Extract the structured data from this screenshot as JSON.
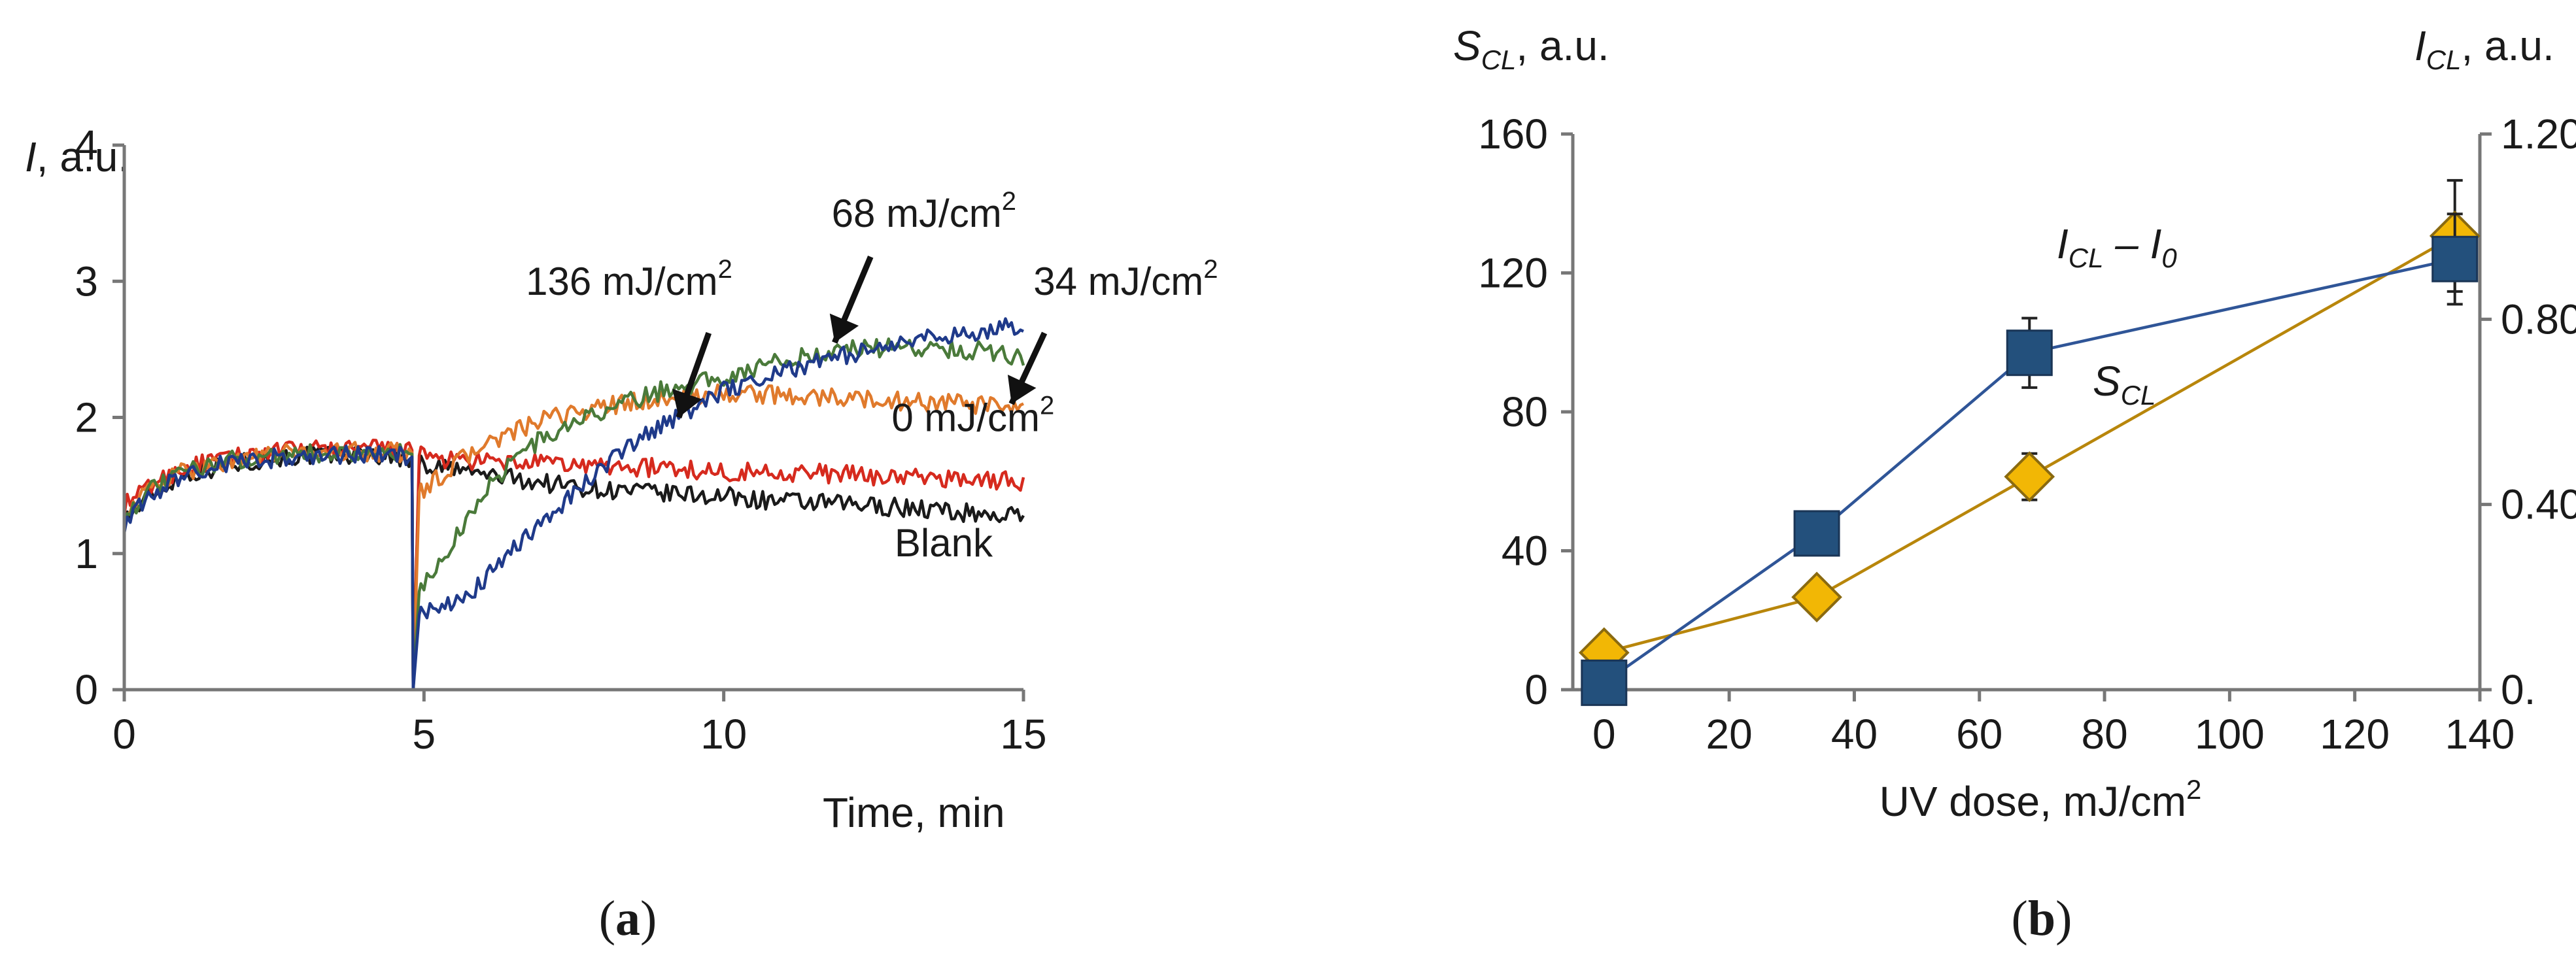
{
  "chart_data": [
    {
      "id": "a",
      "type": "line",
      "panel_label": "(a)",
      "panel_letter": "a",
      "ylabel_italic": "I",
      "ylabel_rest": ", a.u.",
      "xlabel": "Time, min",
      "xlim": [
        0,
        15
      ],
      "ylim": [
        0,
        4
      ],
      "xticks": [
        0,
        5,
        10,
        15
      ],
      "yticks": [
        0,
        1,
        2,
        3,
        4
      ],
      "grid": false,
      "injection_time": 4.8,
      "series": [
        {
          "name": "Blank",
          "color": "#1a1a1a",
          "points": [
            [
              0,
              1.25
            ],
            [
              0.5,
              1.45
            ],
            [
              1,
              1.58
            ],
            [
              1.5,
              1.63
            ],
            [
              2,
              1.67
            ],
            [
              2.5,
              1.7
            ],
            [
              3,
              1.72
            ],
            [
              3.5,
              1.72
            ],
            [
              4,
              1.73
            ],
            [
              4.75,
              1.7
            ],
            [
              4.85,
              0.05
            ],
            [
              4.95,
              1.65
            ],
            [
              5.5,
              1.62
            ],
            [
              6,
              1.58
            ],
            [
              7,
              1.52
            ],
            [
              8,
              1.47
            ],
            [
              9,
              1.44
            ],
            [
              10,
              1.42
            ],
            [
              11,
              1.38
            ],
            [
              12,
              1.36
            ],
            [
              13,
              1.34
            ],
            [
              14,
              1.3
            ],
            [
              15,
              1.27
            ]
          ]
        },
        {
          "name": "0 mJ/cm²",
          "color": "#d62a1e",
          "points": [
            [
              0,
              1.35
            ],
            [
              0.5,
              1.52
            ],
            [
              1,
              1.63
            ],
            [
              1.5,
              1.68
            ],
            [
              2,
              1.72
            ],
            [
              2.5,
              1.75
            ],
            [
              3,
              1.76
            ],
            [
              3.5,
              1.77
            ],
            [
              4,
              1.77
            ],
            [
              4.75,
              1.76
            ],
            [
              4.85,
              0.05
            ],
            [
              4.95,
              1.72
            ],
            [
              5.5,
              1.68
            ],
            [
              6,
              1.67
            ],
            [
              7,
              1.66
            ],
            [
              8,
              1.64
            ],
            [
              9,
              1.63
            ],
            [
              10,
              1.6
            ],
            [
              11,
              1.6
            ],
            [
              12,
              1.58
            ],
            [
              13,
              1.56
            ],
            [
              14,
              1.55
            ],
            [
              15,
              1.53
            ]
          ]
        },
        {
          "name": "34 mJ/cm²",
          "color": "#e07a2c",
          "points": [
            [
              0,
              1.3
            ],
            [
              0.5,
              1.5
            ],
            [
              1,
              1.6
            ],
            [
              1.5,
              1.66
            ],
            [
              2,
              1.7
            ],
            [
              2.5,
              1.73
            ],
            [
              3,
              1.74
            ],
            [
              3.5,
              1.75
            ],
            [
              4,
              1.75
            ],
            [
              4.75,
              1.74
            ],
            [
              4.85,
              0.05
            ],
            [
              4.95,
              1.45
            ],
            [
              5.5,
              1.65
            ],
            [
              6,
              1.8
            ],
            [
              7,
              1.98
            ],
            [
              8,
              2.08
            ],
            [
              9,
              2.14
            ],
            [
              10,
              2.18
            ],
            [
              11,
              2.16
            ],
            [
              12,
              2.14
            ],
            [
              13,
              2.12
            ],
            [
              14,
              2.1
            ],
            [
              15,
              2.05
            ]
          ]
        },
        {
          "name": "68 mJ/cm²",
          "color": "#4a7a3a",
          "points": [
            [
              0,
              1.28
            ],
            [
              0.5,
              1.48
            ],
            [
              1,
              1.6
            ],
            [
              1.5,
              1.66
            ],
            [
              2,
              1.7
            ],
            [
              2.5,
              1.72
            ],
            [
              3,
              1.73
            ],
            [
              3.5,
              1.74
            ],
            [
              4,
              1.74
            ],
            [
              4.75,
              1.73
            ],
            [
              4.85,
              0.05
            ],
            [
              4.95,
              0.72
            ],
            [
              5.5,
              1.1
            ],
            [
              6,
              1.45
            ],
            [
              6.5,
              1.7
            ],
            [
              7,
              1.85
            ],
            [
              8,
              2.05
            ],
            [
              9,
              2.2
            ],
            [
              10,
              2.3
            ],
            [
              11,
              2.42
            ],
            [
              12,
              2.5
            ],
            [
              13,
              2.52
            ],
            [
              14,
              2.5
            ],
            [
              15,
              2.45
            ]
          ]
        },
        {
          "name": "136 mJ/cm²",
          "color": "#1f3a8a",
          "points": [
            [
              0,
              1.22
            ],
            [
              0.5,
              1.45
            ],
            [
              1,
              1.58
            ],
            [
              1.5,
              1.64
            ],
            [
              2,
              1.68
            ],
            [
              2.5,
              1.7
            ],
            [
              3,
              1.71
            ],
            [
              3.5,
              1.72
            ],
            [
              4,
              1.73
            ],
            [
              4.75,
              1.71
            ],
            [
              4.85,
              0.05
            ],
            [
              4.95,
              0.55
            ],
            [
              5.5,
              0.62
            ],
            [
              6,
              0.8
            ],
            [
              7,
              1.25
            ],
            [
              8,
              1.65
            ],
            [
              9,
              1.95
            ],
            [
              10,
              2.2
            ],
            [
              11,
              2.35
            ],
            [
              12,
              2.45
            ],
            [
              13,
              2.55
            ],
            [
              14,
              2.62
            ],
            [
              15,
              2.68
            ]
          ]
        }
      ],
      "annotations": [
        {
          "text": "136 mJ/cm",
          "sup": "2",
          "label_at": [
            6.7,
            2.9
          ],
          "arrow_to": [
            9.25,
            2.0
          ]
        },
        {
          "text": "68 mJ/cm",
          "sup": "2",
          "label_at": [
            11.8,
            3.4
          ],
          "arrow_to": [
            11.85,
            2.55
          ]
        },
        {
          "text": "34 mJ/cm",
          "sup": "2",
          "label_at": [
            15.2,
            2.9
          ],
          "arrow_to": [
            14.8,
            2.1
          ]
        },
        {
          "text": "0 mJ/cm",
          "sup": "2",
          "label_at": [
            12.8,
            1.9
          ],
          "arrow_to": null
        },
        {
          "text": "Blank",
          "sup": "",
          "label_at": [
            12.85,
            0.98
          ],
          "arrow_to": null
        }
      ]
    },
    {
      "id": "b",
      "type": "line",
      "panel_label": "(b)",
      "panel_letter": "b",
      "xlabel": "UV dose, mJ/cm",
      "xlabel_sup": "2",
      "ylabel_left_main": "S",
      "ylabel_left_sub": "CL",
      "ylabel_left_rest": ", a.u.",
      "ylabel_right_main": "I",
      "ylabel_right_sub": "CL",
      "ylabel_right_rest": ", a.u.",
      "xlim": [
        -5,
        140
      ],
      "ylim_left": [
        0,
        160
      ],
      "ylim_right": [
        0,
        1.2
      ],
      "xticks": [
        0,
        20,
        40,
        60,
        80,
        100,
        120,
        140
      ],
      "yticks_left": [
        0,
        40,
        80,
        120,
        160
      ],
      "yticks_right": [
        "0.",
        "0.40",
        "0.80",
        "1.20"
      ],
      "yticks_right_values": [
        0,
        0.4,
        0.8,
        1.2
      ],
      "grid": false,
      "series": [
        {
          "name": "S",
          "name_sub": "CL",
          "axis": "left",
          "marker": "square",
          "marker_color": "#23507c",
          "line_color": "#2f5597",
          "x": [
            0,
            34,
            68,
            136
          ],
          "y": [
            2,
            45,
            97,
            124
          ],
          "err": [
            0,
            0,
            10,
            13
          ]
        },
        {
          "name": "I",
          "name_sub": "CL",
          "name_tail": " – I",
          "name_tail_sub": "0",
          "axis": "right",
          "marker": "diamond",
          "marker_color": "#f2b705",
          "line_color": "#b8860b",
          "x": [
            0,
            34,
            68,
            136
          ],
          "y": [
            0.08,
            0.2,
            0.46,
            0.98
          ],
          "err": [
            0,
            0,
            0.05,
            0.12
          ]
        }
      ]
    }
  ]
}
